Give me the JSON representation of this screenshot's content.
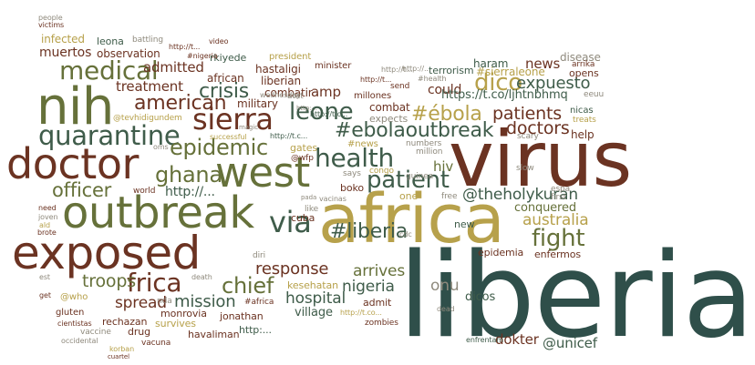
{
  "palette": {
    "dark_teal": "#3f5c4a",
    "olive_green": "#66713a",
    "maroon": "#6b3322",
    "mustard": "#b7a14b",
    "gray": "#8f8a7d",
    "slate_green": "#2f4f4a"
  },
  "words": {
    "liberia": "liberia",
    "virus": "virus",
    "africa": "africa",
    "outbreak": "outbreak",
    "exposed": "exposed",
    "nih": "nih",
    "doctor": "doctor",
    "west": "west",
    "sierra": "sierra",
    "quarantine": "quarantine",
    "medical": "medical",
    "epidemic": "epidemic",
    "health": "health",
    "via": "via",
    "frica": "frica",
    "patient": "patient",
    "leone": "leone",
    "fight": "fight",
    "chief": "chief",
    "ghana": "ghana",
    "crisis": "crisis",
    "american": "american",
    "ebolaoutbreak": "#ebolaoutbreak",
    "ebola": "#ébola",
    "patients": "patients",
    "doctors": "doctors",
    "hashliberia": "#liberia",
    "troops": "troops",
    "officer": "officer",
    "dico": "dico",
    "expuesto": "expuesto",
    "australia": "australia",
    "theholykuran": "@theholykuran",
    "response": "response",
    "mission": "mission",
    "spread": "spread",
    "hospital": "hospital",
    "nigeria": "nigeria",
    "arrives": "arrives",
    "onu": "onu",
    "unicef": "@unicef",
    "dokter": "dokter",
    "news": "news",
    "treatment": "treatment",
    "admitted": "admitted",
    "amp": "amp",
    "could": "could",
    "hiv": "hiv",
    "http1": "http://...",
    "tco_link": "https://t.co/ljhtnbhmq",
    "muertos": "muertos",
    "infected": "infected",
    "observation": "observation",
    "leona": "leona",
    "military": "military",
    "african": "african",
    "rkiyede": "rkiyede",
    "hastaligi": "hastaligi",
    "liberian": "liberian",
    "combatir": "combatir",
    "combat": "combat",
    "expects": "expects",
    "conquered": "conquered",
    "help": "help",
    "haram": "haram",
    "terrorism": "terrorism",
    "sierraleone": "#sierraleone",
    "disease": "disease",
    "opens": "opens",
    "arrika": "arrika",
    "nicas": "nicas",
    "eeuu": "eeuu",
    "treats": "treats",
    "scary": "scary",
    "slow": "slow",
    "espa": "espa",
    "first": "first",
    "free": "free",
    "one": "one",
    "congo": "congo",
    "guinea": "guinea",
    "million": "million",
    "numbers": "numbers",
    "millones": "millones",
    "send": "send",
    "health_tag": "#health",
    "minister": "minister",
    "president": "president",
    "nigeria_tag": "#nigeria",
    "video": "video",
    "battling": "battling",
    "people": "people",
    "victims": "victims",
    "tevhidigundem": "@tevhidigundem",
    "magic": "magic",
    "wednesday": "wednesday",
    "oms": "oms",
    "successful": "successful",
    "world": "world",
    "wfp": "@wfp",
    "says": "says",
    "boko": "boko",
    "gates": "gates",
    "news_tag": "#news",
    "atat": "atat",
    "like": "like",
    "cuba": "cuba",
    "pada": "pada",
    "vacinas": "vacinas",
    "need": "need",
    "joven": "joven",
    "ald": "ald",
    "brote": "brote",
    "est": "est",
    "get": "get",
    "who": "@who",
    "gluten": "gluten",
    "cientistas": "cientistas",
    "vaccine": "vaccine",
    "occidental": "occidental",
    "korban": "korban",
    "cuartel": "cuartel",
    "vacuna": "vacuna",
    "rechazan": "rechazan",
    "drug": "drug",
    "survives": "survives",
    "monrovia": "monrovia",
    "jonathan": "jonathan",
    "havaliman": "havaliman",
    "africa_tag": "#africa",
    "nda": "nda",
    "death": "death",
    "diri": "diri",
    "village": "village",
    "kesehatan": "kesehatan",
    "admit": "admit",
    "zombies": "zombies",
    "dead": "dead",
    "dicos": "dicos",
    "enfermos": "enfermos",
    "epidemia": "epidemia",
    "new": "new",
    "cdc": "cdc",
    "enfrentam": "enfrentam",
    "http_t1": "http://t...",
    "http_t2": "http://t...",
    "http_t3": "http://t...",
    "http_t4": "http://t.c...",
    "http_t5": "http://t.c...",
    "http_t6": "http://t.co...",
    "http_t7": "http://...",
    "http_2": "http:...",
    "http_3": "http:..."
  }
}
